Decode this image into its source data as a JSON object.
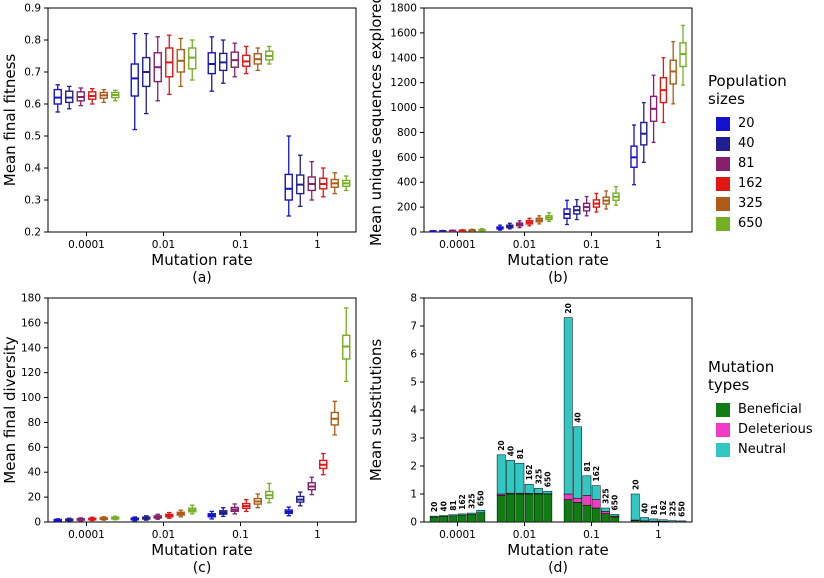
{
  "figure": {
    "background": "#ffffff",
    "legends": {
      "population_sizes": {
        "title": "Population sizes",
        "entries": [
          {
            "label": "20",
            "color": "#1412cf"
          },
          {
            "label": "40",
            "color": "#1f1f8f"
          },
          {
            "label": "81",
            "color": "#871f6f"
          },
          {
            "label": "162",
            "color": "#e01715"
          },
          {
            "label": "325",
            "color": "#ad5b16"
          },
          {
            "label": "650",
            "color": "#76ae23"
          }
        ]
      },
      "mutation_types": {
        "title": "Mutation types",
        "entries": [
          {
            "label": "Beneficial",
            "color": "#0f7d12"
          },
          {
            "label": "Deleterious",
            "color": "#f23bc4"
          },
          {
            "label": "Neutral",
            "color": "#31c8c4"
          }
        ]
      }
    }
  },
  "chart_data": [
    {
      "id": "a",
      "panel_label": "(a)",
      "type": "boxplot",
      "xlabel": "Mutation rate",
      "ylabel": "Mean final fitness",
      "ylim": [
        0.2,
        0.9
      ],
      "yticks": [
        "0.2",
        "0.3",
        "0.4",
        "0.5",
        "0.6",
        "0.7",
        "0.8",
        "0.9"
      ],
      "x_categories": [
        "0.0001",
        "0.01",
        "0.1",
        "1"
      ],
      "series": [
        "20",
        "40",
        "81",
        "162",
        "325",
        "650"
      ],
      "box_values_order": [
        "whisker_low",
        "q1",
        "median",
        "q3",
        "whisker_high"
      ],
      "groups": [
        {
          "mutation_rate": "0.0001",
          "boxes": [
            [
              0.575,
              0.6,
              0.62,
              0.645,
              0.66
            ],
            [
              0.585,
              0.605,
              0.62,
              0.64,
              0.655
            ],
            [
              0.595,
              0.61,
              0.622,
              0.638,
              0.65
            ],
            [
              0.6,
              0.615,
              0.625,
              0.638,
              0.648
            ],
            [
              0.605,
              0.618,
              0.627,
              0.636,
              0.645
            ],
            [
              0.61,
              0.62,
              0.628,
              0.636,
              0.643
            ]
          ]
        },
        {
          "mutation_rate": "0.01",
          "boxes": [
            [
              0.52,
              0.625,
              0.68,
              0.725,
              0.82
            ],
            [
              0.57,
              0.655,
              0.7,
              0.745,
              0.82
            ],
            [
              0.61,
              0.67,
              0.715,
              0.76,
              0.81
            ],
            [
              0.63,
              0.685,
              0.73,
              0.775,
              0.815
            ],
            [
              0.655,
              0.7,
              0.735,
              0.77,
              0.805
            ],
            [
              0.675,
              0.71,
              0.745,
              0.775,
              0.8
            ]
          ]
        },
        {
          "mutation_rate": "0.1",
          "boxes": [
            [
              0.64,
              0.695,
              0.725,
              0.76,
              0.81
            ],
            [
              0.665,
              0.705,
              0.73,
              0.758,
              0.8
            ],
            [
              0.685,
              0.715,
              0.737,
              0.762,
              0.79
            ],
            [
              0.695,
              0.718,
              0.733,
              0.752,
              0.78
            ],
            [
              0.705,
              0.725,
              0.74,
              0.757,
              0.775
            ],
            [
              0.725,
              0.738,
              0.75,
              0.765,
              0.78
            ]
          ]
        },
        {
          "mutation_rate": "1",
          "boxes": [
            [
              0.25,
              0.3,
              0.335,
              0.38,
              0.5
            ],
            [
              0.28,
              0.32,
              0.348,
              0.378,
              0.44
            ],
            [
              0.3,
              0.33,
              0.35,
              0.372,
              0.42
            ],
            [
              0.31,
              0.335,
              0.35,
              0.368,
              0.4
            ],
            [
              0.32,
              0.34,
              0.352,
              0.364,
              0.385
            ],
            [
              0.33,
              0.343,
              0.352,
              0.361,
              0.375
            ]
          ]
        }
      ]
    },
    {
      "id": "b",
      "panel_label": "(b)",
      "type": "boxplot",
      "xlabel": "Mutation rate",
      "ylabel": "Mean unique sequences explored",
      "ylim": [
        0,
        1800
      ],
      "yticks": [
        "0",
        "200",
        "400",
        "600",
        "800",
        "1000",
        "1200",
        "1400",
        "1600",
        "1800"
      ],
      "x_categories": [
        "0.0001",
        "0.01",
        "0.1",
        "1"
      ],
      "series": [
        "20",
        "40",
        "81",
        "162",
        "325",
        "650"
      ],
      "box_values_order": [
        "whisker_low",
        "q1",
        "median",
        "q3",
        "whisker_high"
      ],
      "groups": [
        {
          "mutation_rate": "0.0001",
          "boxes": [
            [
              2,
              4,
              6,
              8,
              10
            ],
            [
              3,
              5,
              7,
              9,
              12
            ],
            [
              4,
              6,
              9,
              12,
              15
            ],
            [
              5,
              8,
              11,
              14,
              18
            ],
            [
              6,
              10,
              13,
              17,
              22
            ],
            [
              8,
              12,
              16,
              20,
              26
            ]
          ]
        },
        {
          "mutation_rate": "0.01",
          "boxes": [
            [
              15,
              25,
              32,
              40,
              55
            ],
            [
              25,
              35,
              45,
              55,
              70
            ],
            [
              35,
              50,
              60,
              72,
              90
            ],
            [
              50,
              65,
              78,
              92,
              110
            ],
            [
              65,
              82,
              95,
              110,
              130
            ],
            [
              85,
              100,
              115,
              130,
              155
            ]
          ]
        },
        {
          "mutation_rate": "0.1",
          "boxes": [
            [
              60,
              110,
              145,
              185,
              255
            ],
            [
              100,
              145,
              175,
              205,
              260
            ],
            [
              130,
              170,
              200,
              230,
              285
            ],
            [
              160,
              200,
              228,
              258,
              310
            ],
            [
              185,
              225,
              252,
              280,
              330
            ],
            [
              215,
              255,
              283,
              312,
              365
            ]
          ]
        },
        {
          "mutation_rate": "1",
          "boxes": [
            [
              380,
              520,
              600,
              690,
              860
            ],
            [
              560,
              700,
              790,
              880,
              1040
            ],
            [
              720,
              890,
              990,
              1090,
              1260
            ],
            [
              880,
              1040,
              1140,
              1240,
              1400
            ],
            [
              1030,
              1190,
              1290,
              1380,
              1530
            ],
            [
              1180,
              1330,
              1430,
              1520,
              1660
            ]
          ]
        }
      ]
    },
    {
      "id": "c",
      "panel_label": "(c)",
      "type": "boxplot",
      "xlabel": "Mutation rate",
      "ylabel": "Mean final diversity",
      "ylim": [
        0,
        180
      ],
      "yticks": [
        "0",
        "20",
        "40",
        "60",
        "80",
        "100",
        "120",
        "140",
        "160",
        "180"
      ],
      "x_categories": [
        "0.0001",
        "0.01",
        "0.1",
        "1"
      ],
      "series": [
        "20",
        "40",
        "81",
        "162",
        "325",
        "650"
      ],
      "box_values_order": [
        "whisker_low",
        "q1",
        "median",
        "q3",
        "whisker_high"
      ],
      "groups": [
        {
          "mutation_rate": "0.0001",
          "boxes": [
            [
              0.5,
              1.0,
              1.5,
              2.0,
              2.5
            ],
            [
              0.8,
              1.2,
              1.8,
              2.3,
              3.0
            ],
            [
              1.0,
              1.5,
              2.0,
              2.6,
              3.3
            ],
            [
              1.2,
              1.8,
              2.3,
              3.0,
              3.8
            ],
            [
              1.5,
              2.1,
              2.7,
              3.4,
              4.2
            ],
            [
              1.8,
              2.4,
              3.0,
              3.8,
              4.6
            ]
          ]
        },
        {
          "mutation_rate": "0.01",
          "boxes": [
            [
              1.0,
              1.8,
              2.4,
              3.1,
              4.0
            ],
            [
              1.5,
              2.4,
              3.1,
              3.9,
              5.0
            ],
            [
              2.2,
              3.2,
              4.0,
              4.9,
              6.2
            ],
            [
              3.0,
              4.2,
              5.1,
              6.1,
              7.6
            ],
            [
              4.2,
              5.6,
              6.6,
              7.8,
              9.5
            ],
            [
              6.5,
              8.2,
              9.5,
              11.0,
              13.5
            ]
          ]
        },
        {
          "mutation_rate": "0.1",
          "boxes": [
            [
              2.5,
              4.2,
              5.3,
              6.6,
              8.5
            ],
            [
              4.5,
              6.3,
              7.6,
              9.0,
              11.5
            ],
            [
              6.5,
              8.6,
              10.0,
              11.7,
              14.5
            ],
            [
              8.5,
              11.0,
              12.8,
              14.8,
              18.0
            ],
            [
              11.5,
              14.4,
              16.5,
              18.8,
              22.5
            ],
            [
              15.5,
              19.0,
              21.5,
              24.5,
              31.0
            ]
          ]
        },
        {
          "mutation_rate": "1",
          "boxes": [
            [
              5.0,
              7.0,
              8.2,
              9.6,
              12.0
            ],
            [
              13.0,
              16.0,
              18.0,
              20.5,
              24.0
            ],
            [
              22.0,
              26.0,
              28.5,
              31.5,
              36.0
            ],
            [
              38.0,
              43.0,
              46.0,
              49.5,
              55.0
            ],
            [
              70.0,
              78.0,
              83.0,
              88.0,
              97.0
            ],
            [
              113.0,
              131.0,
              141.0,
              150.0,
              172.0
            ]
          ]
        }
      ]
    },
    {
      "id": "d",
      "panel_label": "(d)",
      "type": "stacked_bar",
      "xlabel": "Mutation rate",
      "ylabel": "Mean substitutions",
      "ylim": [
        0,
        8
      ],
      "yticks": [
        "0",
        "1",
        "2",
        "3",
        "4",
        "5",
        "6",
        "7",
        "8"
      ],
      "x_categories": [
        "0.0001",
        "0.01",
        "0.1",
        "1"
      ],
      "segment_order": [
        "beneficial",
        "deleterious",
        "neutral"
      ],
      "groups": [
        {
          "mutation_rate": "0.0001",
          "bars": [
            {
              "population": "20",
              "beneficial": 0.18,
              "deleterious": 0.0,
              "neutral": 0.03
            },
            {
              "population": "40",
              "beneficial": 0.2,
              "deleterious": 0.0,
              "neutral": 0.03
            },
            {
              "population": "81",
              "beneficial": 0.22,
              "deleterious": 0.0,
              "neutral": 0.04
            },
            {
              "population": "162",
              "beneficial": 0.25,
              "deleterious": 0.0,
              "neutral": 0.04
            },
            {
              "population": "325",
              "beneficial": 0.27,
              "deleterious": 0.0,
              "neutral": 0.05
            },
            {
              "population": "650",
              "beneficial": 0.33,
              "deleterious": 0.0,
              "neutral": 0.09
            }
          ]
        },
        {
          "mutation_rate": "0.01",
          "bars": [
            {
              "population": "20",
              "beneficial": 0.95,
              "deleterious": 0.05,
              "neutral": 1.4
            },
            {
              "population": "40",
              "beneficial": 1.0,
              "deleterious": 0.03,
              "neutral": 1.17
            },
            {
              "population": "81",
              "beneficial": 1.0,
              "deleterious": 0.03,
              "neutral": 1.07
            },
            {
              "population": "162",
              "beneficial": 1.0,
              "deleterious": 0.02,
              "neutral": 0.33
            },
            {
              "population": "325",
              "beneficial": 1.0,
              "deleterious": 0.02,
              "neutral": 0.18
            },
            {
              "population": "650",
              "beneficial": 1.0,
              "deleterious": 0.01,
              "neutral": 0.09
            }
          ]
        },
        {
          "mutation_rate": "0.1",
          "bars": [
            {
              "population": "20",
              "beneficial": 0.8,
              "deleterious": 0.2,
              "neutral": 6.3
            },
            {
              "population": "40",
              "beneficial": 0.7,
              "deleterious": 0.15,
              "neutral": 2.55
            },
            {
              "population": "81",
              "beneficial": 0.6,
              "deleterious": 0.35,
              "neutral": 0.7
            },
            {
              "population": "162",
              "beneficial": 0.5,
              "deleterious": 0.3,
              "neutral": 0.5
            },
            {
              "population": "325",
              "beneficial": 0.3,
              "deleterious": 0.08,
              "neutral": 0.12
            },
            {
              "population": "650",
              "beneficial": 0.18,
              "deleterious": 0.03,
              "neutral": 0.06
            }
          ]
        },
        {
          "mutation_rate": "1",
          "bars": [
            {
              "population": "20",
              "beneficial": 0.05,
              "deleterious": 0.02,
              "neutral": 0.93
            },
            {
              "population": "40",
              "beneficial": 0.03,
              "deleterious": 0.01,
              "neutral": 0.12
            },
            {
              "population": "81",
              "beneficial": 0.02,
              "deleterious": 0.01,
              "neutral": 0.08
            },
            {
              "population": "162",
              "beneficial": 0.02,
              "deleterious": 0.01,
              "neutral": 0.05
            },
            {
              "population": "325",
              "beneficial": 0.01,
              "deleterious": 0.0,
              "neutral": 0.04
            },
            {
              "population": "650",
              "beneficial": 0.01,
              "deleterious": 0.0,
              "neutral": 0.03
            }
          ]
        }
      ]
    }
  ]
}
